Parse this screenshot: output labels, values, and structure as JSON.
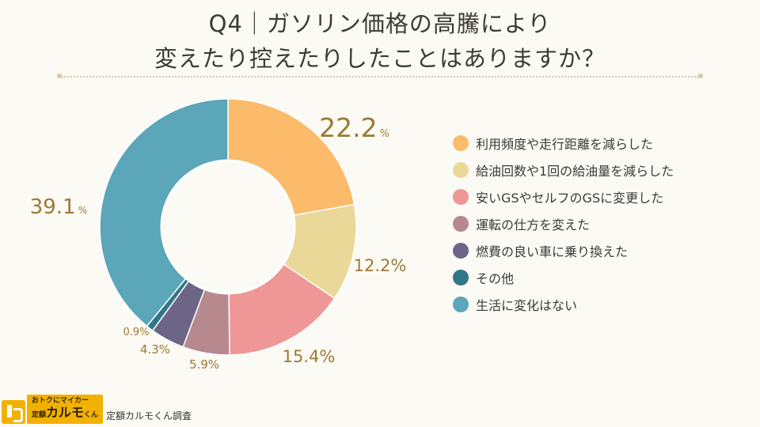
{
  "title": {
    "line1": "Q4｜ガソリン価格の高騰により",
    "line2": "変えたり控えたりしたことはありますか？"
  },
  "chart_data": {
    "type": "pie",
    "variant": "donut",
    "unit": "%",
    "categories": [
      "利用頻度や走行距離を減らした",
      "給油回数や1回の給油量を減らした",
      "安いGSやセルフのGSに変更した",
      "運転の仕方を変えた",
      "燃費の良い車に乗り換えた",
      "その他",
      "生活に変化はない"
    ],
    "values": [
      22.2,
      12.2,
      15.4,
      5.9,
      4.3,
      0.9,
      39.1
    ],
    "value_labels": [
      "22.2",
      "12.2%",
      "15.4%",
      "5.9%",
      "4.3%",
      "0.9%",
      "39.1"
    ],
    "unit_marks": [
      "%",
      "",
      "",
      "",
      "",
      "",
      "%"
    ],
    "colors": [
      "#fcbb6a",
      "#ead898",
      "#ee9796",
      "#b8888f",
      "#6c6588",
      "#2f7689",
      "#5ba6b8"
    ],
    "label_color": "#9b7a35",
    "legend_position": "right"
  },
  "footer": {
    "logo_top": "おトクにマイカー",
    "logo_small": "定額",
    "logo_main": "カルモ",
    "logo_suffix": "くん",
    "source": "定額カルモくん調査"
  }
}
